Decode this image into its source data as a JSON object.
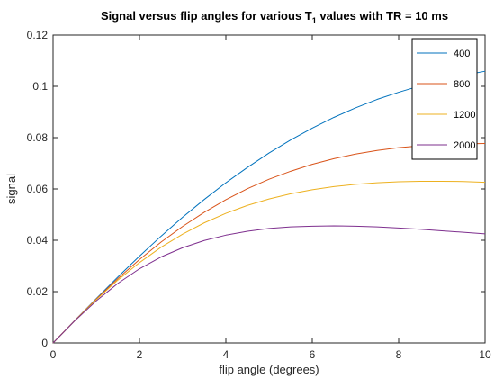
{
  "chart_data": {
    "type": "line",
    "title": {
      "main": "Signal versus flip angles for various T",
      "subscript": "1",
      "rest": " values with TR = 10 ms"
    },
    "xlabel": "flip angle (degrees)",
    "ylabel": "signal",
    "xlim": [
      0,
      10
    ],
    "ylim": [
      0,
      0.12
    ],
    "xticks": [
      0,
      2,
      4,
      6,
      8,
      10
    ],
    "xtick_labels": [
      "0",
      "2",
      "4",
      "6",
      "8",
      "10"
    ],
    "yticks": [
      0,
      0.02,
      0.04,
      0.06,
      0.08,
      0.1,
      0.12
    ],
    "ytick_labels": [
      "0",
      "0.02",
      "0.04",
      "0.06",
      "0.08",
      "0.1",
      "0.12"
    ],
    "grid": false,
    "legend_position": "top-right",
    "x": [
      0,
      0.5,
      1,
      1.5,
      2,
      2.5,
      3,
      3.5,
      4,
      4.5,
      5,
      5.5,
      6,
      6.5,
      7,
      7.5,
      8,
      8.5,
      9,
      9.5,
      10
    ],
    "series": [
      {
        "name": "400",
        "color": "#0072bd",
        "values": [
          0,
          0.0087,
          0.0173,
          0.0257,
          0.0338,
          0.0416,
          0.049,
          0.0559,
          0.0624,
          0.0684,
          0.074,
          0.0791,
          0.0837,
          0.0879,
          0.0916,
          0.0949,
          0.0977,
          0.1002,
          0.1024,
          0.1043,
          0.1059
        ]
      },
      {
        "name": "800",
        "color": "#d95319",
        "values": [
          0,
          0.0087,
          0.0171,
          0.0251,
          0.0325,
          0.0393,
          0.0454,
          0.0509,
          0.0558,
          0.0601,
          0.0638,
          0.0669,
          0.0696,
          0.0718,
          0.0736,
          0.075,
          0.0761,
          0.0768,
          0.0773,
          0.0776,
          0.0777
        ]
      },
      {
        "name": "1200",
        "color": "#edb120",
        "values": [
          0,
          0.0086,
          0.0169,
          0.0245,
          0.0313,
          0.0373,
          0.0424,
          0.0468,
          0.0505,
          0.0536,
          0.0561,
          0.0581,
          0.0597,
          0.0609,
          0.0618,
          0.0624,
          0.0628,
          0.063,
          0.063,
          0.0629,
          0.0626
        ]
      },
      {
        "name": "2000",
        "color": "#7e2f8e",
        "values": [
          0,
          0.0086,
          0.0164,
          0.0232,
          0.0289,
          0.0335,
          0.0371,
          0.0399,
          0.042,
          0.0435,
          0.0446,
          0.0452,
          0.0455,
          0.0456,
          0.0455,
          0.0452,
          0.0448,
          0.0443,
          0.0437,
          0.0431,
          0.0425
        ]
      }
    ]
  }
}
